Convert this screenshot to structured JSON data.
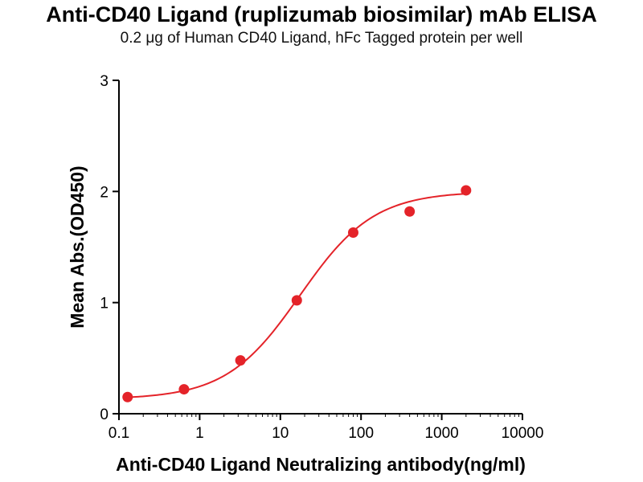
{
  "chart_data": {
    "type": "scatter",
    "title": "Anti-CD40 Ligand (ruplizumab biosimilar) mAb ELISA",
    "subtitle": "0.2 μg of Human CD40 Ligand, hFc Tagged protein per well",
    "xlabel": "Anti-CD40 Ligand Neutralizing antibody(ng/ml)",
    "ylabel": "Mean Abs.(OD450)",
    "x_scale": "log10",
    "xlim": [
      0.1,
      10000
    ],
    "ylim": [
      0,
      3
    ],
    "x_ticks": [
      {
        "value": 0.1,
        "label": "0.1"
      },
      {
        "value": 1,
        "label": "1"
      },
      {
        "value": 10,
        "label": "10"
      },
      {
        "value": 100,
        "label": "100"
      },
      {
        "value": 1000,
        "label": "1000"
      },
      {
        "value": 10000,
        "label": "10000"
      }
    ],
    "y_ticks": [
      {
        "value": 0,
        "label": "0"
      },
      {
        "value": 1,
        "label": "1"
      },
      {
        "value": 2,
        "label": "2"
      },
      {
        "value": 3,
        "label": "3"
      }
    ],
    "grid": false,
    "legend": "none",
    "x": [
      0.128,
      0.64,
      3.2,
      16,
      80,
      400,
      2000
    ],
    "y": [
      0.15,
      0.22,
      0.48,
      1.02,
      1.63,
      1.82,
      2.01
    ],
    "fit": {
      "model": "4PL",
      "bottom": 0.13,
      "top": 2.0,
      "ec50": 17.5,
      "hill": 0.95
    },
    "point_color": "#e42329",
    "curve_color": "#e42329",
    "axis_color": "#000000"
  }
}
